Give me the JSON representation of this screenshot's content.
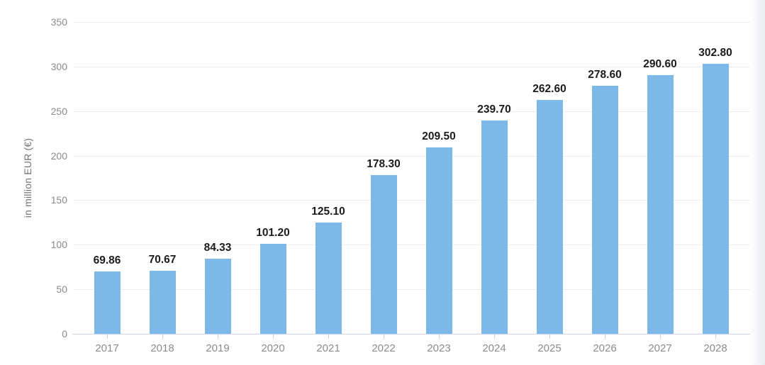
{
  "chart_data": {
    "type": "bar",
    "title": "",
    "categories": [
      "2017",
      "2018",
      "2019",
      "2020",
      "2021",
      "2022",
      "2023",
      "2024",
      "2025",
      "2026",
      "2027",
      "2028"
    ],
    "values": [
      69.86,
      70.67,
      84.33,
      101.2,
      125.1,
      178.3,
      209.5,
      239.7,
      262.6,
      278.6,
      290.6,
      302.8
    ],
    "value_labels": [
      "69.86",
      "70.67",
      "84.33",
      "101.20",
      "125.10",
      "178.30",
      "209.50",
      "239.70",
      "262.60",
      "278.60",
      "290.60",
      "302.80"
    ],
    "xlabel": "",
    "ylabel": "in million EUR (€)",
    "yticks": [
      0,
      50,
      100,
      150,
      200,
      250,
      300,
      350
    ],
    "ylim": [
      0,
      350
    ],
    "grid": true,
    "legend": "none",
    "colors": {
      "bar": "#7cb8e8",
      "value_label": "#1c1c1c",
      "axis_text": "#8b8b8b",
      "y_axis_title_text": "#757575",
      "gridline": "#ededed",
      "axis_line": "#c9d4e4",
      "background": "#ffffff"
    }
  }
}
